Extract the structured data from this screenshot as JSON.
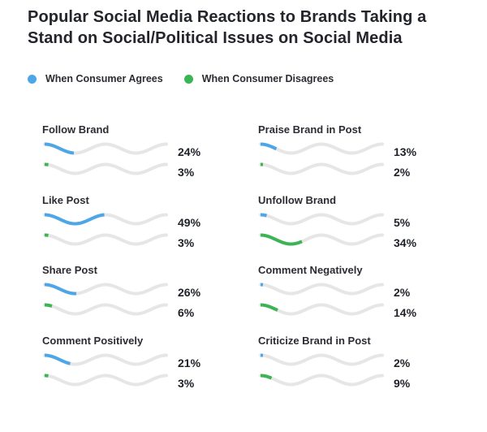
{
  "chart_data": {
    "type": "bar",
    "title": "Popular Social Media Reactions to Brands Taking a Stand on Social/Political Issues on Social Media",
    "legend": [
      "When Consumer Agrees",
      "When Consumer Disagrees"
    ],
    "legend_position": "top-left",
    "colors": {
      "agree": "#4da6e8",
      "disagree": "#3bb454",
      "track": "#e6e6e6"
    },
    "ylim": [
      0,
      100
    ],
    "categories": [
      "Follow Brand",
      "Praise Brand in Post",
      "Like Post",
      "Unfollow Brand",
      "Share Post",
      "Comment Negatively",
      "Comment Positively",
      "Criticize Brand in Post"
    ],
    "series": [
      {
        "name": "When Consumer Agrees",
        "values": [
          24,
          13,
          49,
          5,
          26,
          2,
          21,
          2
        ]
      },
      {
        "name": "When Consumer Disagrees",
        "values": [
          3,
          2,
          3,
          34,
          6,
          14,
          3,
          9
        ]
      }
    ],
    "labels_agree": [
      "24%",
      "13%",
      "49%",
      "5%",
      "26%",
      "2%",
      "21%",
      "2%"
    ],
    "labels_disagree": [
      "3%",
      "2%",
      "3%",
      "34%",
      "6%",
      "14%",
      "3%",
      "9%"
    ]
  }
}
